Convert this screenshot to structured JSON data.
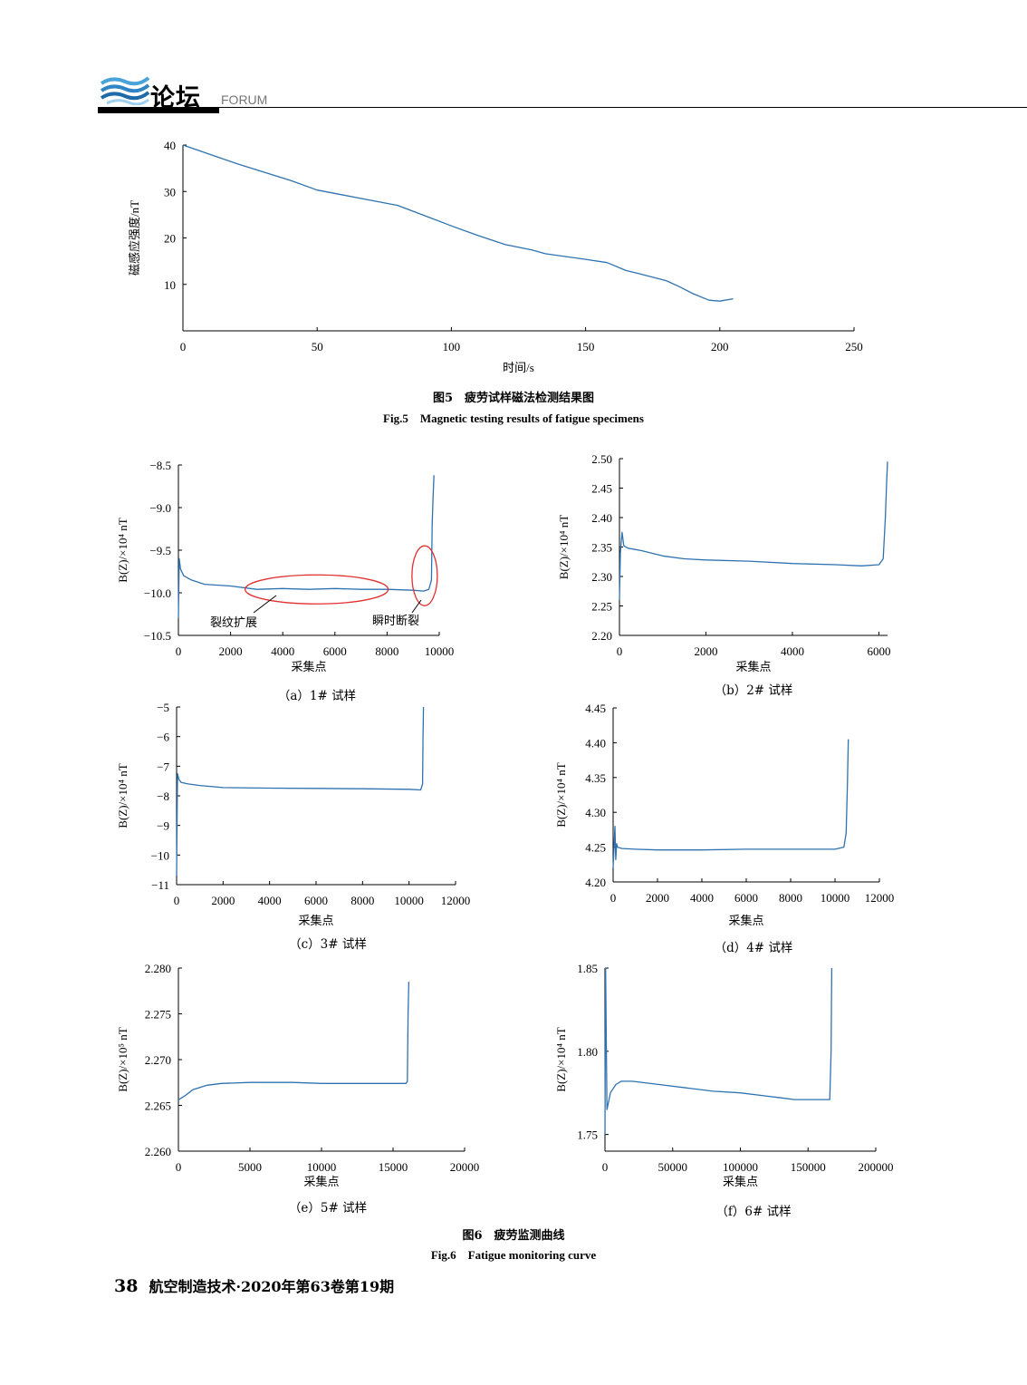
{
  "header": {
    "section_cn": "论坛",
    "section_en": "FORUM"
  },
  "fig5": {
    "caption_cn": "图5　疲劳试样磁法检测结果图",
    "caption_en": "Fig.5　Magnetic testing results of fatigue specimens"
  },
  "fig6": {
    "caption_cn": "图6　疲劳监测曲线",
    "caption_en": "Fig.6　Fatigue monitoring curve"
  },
  "footer": {
    "page": "38",
    "journal": "航空制造技术·2020年第63卷第19期"
  },
  "chart_data": [
    {
      "id": "fig5",
      "type": "line",
      "title": "",
      "xlabel": "时间/s",
      "ylabel": "磁感应强度/nT",
      "xlim": [
        0,
        250
      ],
      "ylim": [
        0,
        40
      ],
      "xticks": [
        0,
        50,
        100,
        150,
        200,
        250
      ],
      "yticks": [
        10,
        20,
        30,
        40
      ],
      "yticks_shown": [
        "10",
        "20",
        "30",
        "40"
      ],
      "color": "#2f72b0",
      "x": [
        0,
        10,
        20,
        30,
        40,
        50,
        60,
        70,
        80,
        90,
        100,
        110,
        120,
        130,
        135,
        140,
        150,
        158,
        165,
        170,
        180,
        185,
        190,
        196,
        200,
        205
      ],
      "y": [
        40,
        38,
        36,
        34.2,
        32.4,
        30.3,
        29.2,
        28.1,
        27,
        24.8,
        22.6,
        20.5,
        18.6,
        17.4,
        16.6,
        16.2,
        15.4,
        14.7,
        13.0,
        12.3,
        10.8,
        9.5,
        8.0,
        6.6,
        6.4,
        6.9
      ]
    },
    {
      "id": "a",
      "type": "line",
      "subcaption": "（a）1# 试样",
      "xlabel": "采集点",
      "ylabel": "B(Z)/×10⁴ nT",
      "xlim": [
        0,
        10000
      ],
      "ylim": [
        -10.5,
        -8.5
      ],
      "xticks": [
        0,
        2000,
        4000,
        6000,
        8000,
        10000
      ],
      "yticks": [
        -10.5,
        -10.0,
        -9.5,
        -9.0,
        -8.5
      ],
      "yticks_shown": [
        "−10.5",
        "−10.0",
        "−9.5",
        "−9.0",
        "−8.5"
      ],
      "color": "#2f72b0",
      "x": [
        0,
        30,
        80,
        200,
        500,
        1000,
        2000,
        3000,
        4000,
        5000,
        6000,
        7000,
        8000,
        9000,
        9400,
        9600,
        9700,
        9730,
        9760,
        9800
      ],
      "y": [
        -10.3,
        -9.6,
        -9.72,
        -9.8,
        -9.85,
        -9.9,
        -9.92,
        -9.96,
        -9.95,
        -9.96,
        -9.95,
        -9.96,
        -9.96,
        -9.97,
        -9.98,
        -9.96,
        -9.85,
        -9.2,
        -8.9,
        -8.62
      ],
      "annotations": [
        "裂纹扩展",
        "瞬时断裂"
      ]
    },
    {
      "id": "b",
      "type": "line",
      "subcaption": "（b）2# 试样",
      "xlabel": "采集点",
      "ylabel": "B(Z)/×10⁴ nT",
      "xlim": [
        0,
        6200
      ],
      "ylim": [
        2.2,
        2.5
      ],
      "xticks": [
        0,
        2000,
        4000,
        6000
      ],
      "yticks": [
        2.2,
        2.25,
        2.3,
        2.35,
        2.4,
        2.45,
        2.5
      ],
      "yticks_shown": [
        "2.20",
        "2.25",
        "2.30",
        "2.35",
        "2.40",
        "2.45",
        "2.50"
      ],
      "color": "#2f72b0",
      "x": [
        0,
        20,
        60,
        100,
        200,
        500,
        1000,
        1500,
        2000,
        3000,
        4000,
        5000,
        5600,
        6000,
        6100,
        6150,
        6180,
        6200
      ],
      "y": [
        2.26,
        2.34,
        2.375,
        2.352,
        2.348,
        2.344,
        2.335,
        2.33,
        2.328,
        2.326,
        2.322,
        2.32,
        2.318,
        2.32,
        2.33,
        2.4,
        2.46,
        2.495
      ]
    },
    {
      "id": "c",
      "type": "line",
      "subcaption": "（c）3# 试样",
      "xlabel": "采集点",
      "ylabel": "B(Z)/×10⁴ nT",
      "xlim": [
        0,
        12000
      ],
      "ylim": [
        -11,
        -5
      ],
      "xticks": [
        0,
        2000,
        4000,
        6000,
        8000,
        10000,
        12000
      ],
      "yticks": [
        -11,
        -10,
        -9,
        -8,
        -7,
        -6,
        -5
      ],
      "yticks_shown": [
        "−11",
        "−10",
        "−9",
        "−8",
        "−7",
        "−6",
        "−5"
      ],
      "color": "#2f72b0",
      "x": [
        0,
        40,
        100,
        200,
        500,
        1000,
        2000,
        4000,
        6000,
        8000,
        10000,
        10500,
        10580,
        10600,
        10620
      ],
      "y": [
        -10.7,
        -7.25,
        -7.45,
        -7.55,
        -7.6,
        -7.65,
        -7.72,
        -7.74,
        -7.75,
        -7.76,
        -7.78,
        -7.8,
        -7.6,
        -6.0,
        -5.0
      ]
    },
    {
      "id": "d",
      "type": "line",
      "subcaption": "（d）4# 试样",
      "xlabel": "采集点",
      "ylabel": "B(Z)/×10⁴ nT",
      "xlim": [
        0,
        12000
      ],
      "ylim": [
        4.2,
        4.45
      ],
      "xticks": [
        0,
        2000,
        4000,
        6000,
        8000,
        10000,
        12000
      ],
      "yticks": [
        4.2,
        4.25,
        4.3,
        4.35,
        4.4,
        4.45
      ],
      "yticks_shown": [
        "4.20",
        "4.25",
        "4.30",
        "4.35",
        "4.40",
        "4.45"
      ],
      "color": "#2f72b0",
      "x": [
        0,
        80,
        120,
        160,
        200,
        400,
        1000,
        2000,
        4000,
        6000,
        8000,
        10000,
        10400,
        10500,
        10560,
        10600
      ],
      "y": [
        4.22,
        4.28,
        4.232,
        4.255,
        4.25,
        4.248,
        4.247,
        4.246,
        4.246,
        4.247,
        4.247,
        4.247,
        4.25,
        4.27,
        4.34,
        4.405
      ]
    },
    {
      "id": "e",
      "type": "line",
      "subcaption": "（e）5# 试样",
      "xlabel": "采集点",
      "ylabel": "B(Z)/×10⁵ nT",
      "xlim": [
        0,
        20000
      ],
      "ylim": [
        2.26,
        2.28
      ],
      "xticks": [
        0,
        5000,
        10000,
        15000,
        20000
      ],
      "yticks": [
        2.26,
        2.265,
        2.27,
        2.275,
        2.28
      ],
      "yticks_shown": [
        "2.260",
        "2.265",
        "2.270",
        "2.275",
        "2.280"
      ],
      "color": "#2f72b0",
      "x": [
        0,
        500,
        1000,
        2000,
        3000,
        5000,
        8000,
        10000,
        12000,
        15000,
        15900,
        16000,
        16050,
        16100
      ],
      "y": [
        2.2656,
        2.2661,
        2.2667,
        2.2672,
        2.2674,
        2.2675,
        2.2675,
        2.2674,
        2.2674,
        2.2674,
        2.2674,
        2.2676,
        2.275,
        2.2785
      ]
    },
    {
      "id": "f",
      "type": "line",
      "subcaption": "（f）6# 试样",
      "xlabel": "采集点",
      "ylabel": "B(Z)/×10⁴ nT",
      "xlim": [
        0,
        200000
      ],
      "ylim": [
        1.74,
        1.85
      ],
      "xticks": [
        0,
        50000,
        100000,
        150000,
        200000
      ],
      "yticks": [
        1.75,
        1.8,
        1.85
      ],
      "yticks_shown": [
        "1.75",
        "1.80",
        "1.85"
      ],
      "color": "#2f72b0",
      "x": [
        0,
        500,
        1500,
        4000,
        8000,
        12000,
        20000,
        40000,
        60000,
        80000,
        100000,
        120000,
        130000,
        140000,
        150000,
        160000,
        166000,
        167000,
        167500
      ],
      "y": [
        1.75,
        1.85,
        1.765,
        1.775,
        1.78,
        1.782,
        1.782,
        1.78,
        1.778,
        1.776,
        1.775,
        1.773,
        1.772,
        1.771,
        1.771,
        1.771,
        1.771,
        1.8,
        1.85
      ]
    }
  ]
}
